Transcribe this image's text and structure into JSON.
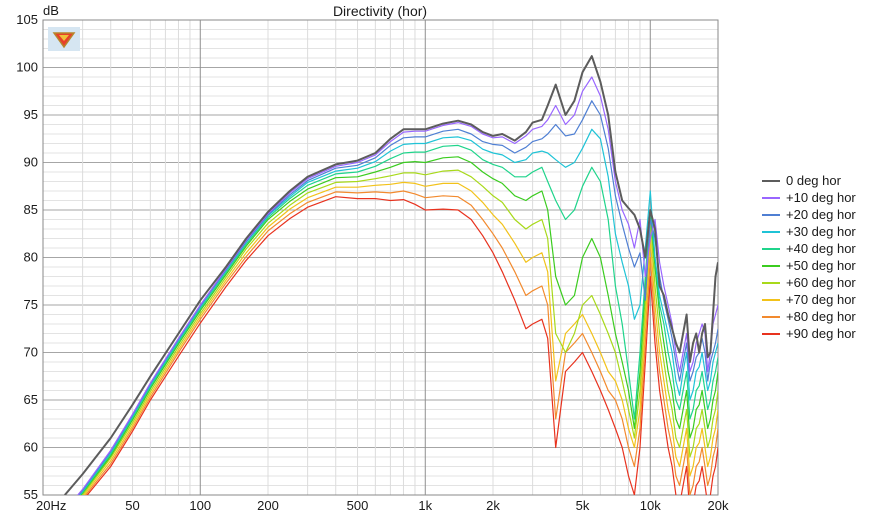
{
  "chart_data": {
    "type": "line",
    "title": "Directivity (hor)",
    "ylabel": "dB",
    "xlabel": "",
    "x_scale": "log",
    "xlim": [
      20,
      20000
    ],
    "ylim": [
      55,
      105
    ],
    "grid": true,
    "legend_position": "right",
    "y_ticks": [
      55,
      60,
      65,
      70,
      75,
      80,
      85,
      90,
      95,
      100,
      105
    ],
    "x_ticks": [
      {
        "value": 20,
        "label": "20Hz"
      },
      {
        "value": 50,
        "label": "50"
      },
      {
        "value": 100,
        "label": "100"
      },
      {
        "value": 200,
        "label": "200"
      },
      {
        "value": 500,
        "label": "500"
      },
      {
        "value": 1000,
        "label": "1k"
      },
      {
        "value": 2000,
        "label": "2k"
      },
      {
        "value": 5000,
        "label": "5k"
      },
      {
        "value": 10000,
        "label": "10k"
      },
      {
        "value": 20000,
        "label": "20k"
      }
    ],
    "x": [
      25,
      30,
      40,
      50,
      60,
      80,
      100,
      130,
      160,
      200,
      250,
      300,
      400,
      500,
      600,
      700,
      800,
      900,
      1000,
      1200,
      1400,
      1600,
      1800,
      2000,
      2200,
      2500,
      2800,
      3000,
      3300,
      3500,
      3800,
      4200,
      4600,
      5000,
      5500,
      6000,
      6500,
      7000,
      7500,
      8000,
      8500,
      9000,
      9500,
      10000,
      10500,
      11000,
      11500,
      12000,
      12500,
      13000,
      13500,
      14000,
      14500,
      15000,
      15500,
      16000,
      16500,
      17000,
      17500,
      18000,
      18500,
      19000,
      19500,
      20000
    ],
    "series": [
      {
        "name": "0 deg hor",
        "color": "#5c5c5c",
        "values": [
          55,
          57.2,
          61,
          64.5,
          67.5,
          72,
          75.5,
          79,
          82,
          84.8,
          87,
          88.5,
          89.8,
          90.2,
          91,
          92.5,
          93.5,
          93.5,
          93.5,
          94.1,
          94.4,
          94,
          93.2,
          92.8,
          93,
          92.3,
          93.2,
          94.2,
          94.5,
          96,
          98.2,
          95,
          96.5,
          99.5,
          101.2,
          98.5,
          95,
          89,
          86,
          85.2,
          84.5,
          83,
          80,
          85,
          83,
          77,
          76,
          74,
          72.5,
          71,
          70,
          72,
          74,
          69,
          71,
          72,
          70,
          72,
          73,
          69.5,
          70,
          74,
          78,
          79.5
        ]
      },
      {
        "name": "+10 deg hor",
        "color": "#9966ff",
        "values": [
          53.4,
          55.6,
          59.7,
          63.5,
          66.8,
          71.5,
          75,
          78.8,
          81.8,
          84.6,
          86.8,
          88.3,
          89.6,
          90,
          90.8,
          92.2,
          93.2,
          93.3,
          93.3,
          93.9,
          94.2,
          93.8,
          93,
          92.6,
          92.7,
          92,
          92.8,
          93.5,
          93.8,
          94.5,
          96,
          94,
          95,
          97.5,
          99,
          97,
          93.5,
          88,
          85,
          83.5,
          81,
          84,
          78,
          82,
          84,
          79.5,
          77,
          75,
          73,
          70,
          68,
          70,
          72,
          68,
          69,
          71,
          72,
          73,
          72,
          68,
          70,
          73,
          74,
          75
        ]
      },
      {
        "name": "+20 deg hor",
        "color": "#4f7fd3",
        "values": [
          53.3,
          55.5,
          59.6,
          63.4,
          66.7,
          71.4,
          74.9,
          78.7,
          81.7,
          84.5,
          86.6,
          88.1,
          89.4,
          89.7,
          90.5,
          91.8,
          92.6,
          92.7,
          92.7,
          93.3,
          93.5,
          93,
          92.2,
          91.9,
          91.8,
          91,
          91.6,
          92.2,
          92.5,
          93,
          94,
          92.8,
          93,
          94.5,
          96.5,
          95,
          91.5,
          86.5,
          83.5,
          81,
          79,
          80.5,
          75.5,
          84,
          82,
          78,
          75.5,
          73.5,
          71.5,
          69,
          67,
          69,
          71,
          67,
          68,
          69.5,
          70,
          71.5,
          70,
          67,
          69,
          70,
          71,
          72.5
        ]
      },
      {
        "name": "+30 deg hor",
        "color": "#1fc3d6",
        "values": [
          53.2,
          55.4,
          59.5,
          63.3,
          66.6,
          71.3,
          74.8,
          78.6,
          81.6,
          84.4,
          86.4,
          87.9,
          89.1,
          89.4,
          90.1,
          91.2,
          91.9,
          92,
          92,
          92.6,
          92.7,
          92.3,
          91.4,
          91,
          90.8,
          90,
          90.3,
          91,
          91.2,
          91,
          90.3,
          89.5,
          90,
          91.5,
          93.5,
          92.5,
          88.5,
          82.5,
          79.5,
          77,
          73.5,
          75,
          81,
          87,
          80,
          76,
          74,
          72,
          70,
          67,
          65.5,
          68,
          70,
          65,
          66,
          68,
          68.5,
          70,
          68,
          66,
          67,
          69,
          70,
          71
        ]
      },
      {
        "name": "+40 deg hor",
        "color": "#1fd48b",
        "values": [
          53.1,
          55.3,
          59.3,
          63.1,
          66.4,
          71.1,
          74.6,
          78.4,
          81.4,
          84.2,
          86.2,
          87.6,
          88.8,
          89,
          89.6,
          90.4,
          91,
          91.1,
          91.1,
          91.7,
          91.8,
          91.3,
          90.3,
          89.8,
          89.5,
          88.5,
          88.5,
          89,
          89.5,
          88,
          86,
          84,
          85,
          87.5,
          89.5,
          88,
          84,
          77,
          73,
          68,
          63,
          70,
          78,
          85,
          80,
          75,
          73,
          70,
          68,
          65,
          64,
          66,
          68,
          63,
          64,
          66,
          66.5,
          68,
          66,
          64,
          65,
          67,
          68,
          69.5
        ]
      },
      {
        "name": "+50 deg hor",
        "color": "#3bcc1f",
        "values": [
          53,
          55.2,
          59.1,
          62.9,
          66.2,
          70.9,
          74.4,
          78.2,
          81.2,
          84,
          85.9,
          87.2,
          88.4,
          88.5,
          89,
          89.5,
          90,
          90.1,
          90,
          90.5,
          90.6,
          90,
          89,
          88.3,
          87.8,
          86.5,
          86,
          86.5,
          87,
          85,
          78,
          75,
          76,
          80,
          82,
          80,
          76,
          72,
          69,
          66,
          62,
          68,
          77,
          85,
          79,
          74,
          71,
          68,
          66,
          63,
          62,
          64,
          66,
          61,
          62,
          64,
          64.5,
          66,
          64,
          62,
          63,
          65,
          66,
          68
        ]
      },
      {
        "name": "+60 deg hor",
        "color": "#a8d91a",
        "values": [
          52.8,
          55,
          58.9,
          62.6,
          65.9,
          70.6,
          74.1,
          77.9,
          80.9,
          83.6,
          85.5,
          86.8,
          87.9,
          88,
          88.3,
          88.6,
          88.9,
          88.9,
          88.7,
          89.1,
          89.2,
          88.5,
          87.5,
          86.5,
          85.8,
          84,
          83,
          83.5,
          84,
          82,
          72,
          70,
          72,
          75,
          76,
          74,
          72,
          70,
          67,
          64,
          61,
          66,
          75,
          84,
          77,
          72,
          69,
          66,
          64,
          61,
          60,
          62,
          64,
          59,
          60,
          62,
          62.5,
          64,
          62,
          60,
          61,
          63,
          64,
          66
        ]
      },
      {
        "name": "+70 deg hor",
        "color": "#f2c21a",
        "values": [
          52.6,
          54.8,
          58.6,
          62.3,
          65.6,
          70.3,
          73.8,
          77.6,
          80.5,
          83.2,
          85.1,
          86.3,
          87.4,
          87.4,
          87.6,
          87.7,
          87.9,
          87.8,
          87.5,
          87.8,
          87.8,
          87,
          85.8,
          84.5,
          83.5,
          81.5,
          79.5,
          80,
          80.5,
          78.5,
          67,
          72,
          73,
          74,
          72,
          70,
          68,
          67,
          65,
          62,
          60,
          64,
          73,
          82,
          75,
          70,
          67,
          64,
          62,
          59,
          58,
          60,
          62,
          57,
          58,
          60,
          60.5,
          62,
          60,
          58,
          59,
          61,
          62,
          64
        ]
      },
      {
        "name": "+80 deg hor",
        "color": "#f28a2e",
        "values": [
          52.4,
          54.6,
          58.3,
          62,
          65.3,
          70,
          73.5,
          77.3,
          80.1,
          82.8,
          84.6,
          85.8,
          86.9,
          86.8,
          86.9,
          86.8,
          87,
          86.7,
          86.3,
          86.5,
          86.4,
          85.5,
          84,
          82.5,
          81,
          78.5,
          76,
          76.5,
          77,
          75,
          63,
          70,
          71,
          72,
          70,
          68,
          66,
          65,
          63,
          60,
          58,
          62,
          71,
          80,
          73,
          68,
          65,
          62,
          60,
          57,
          56,
          58,
          60,
          55,
          56,
          58,
          58.5,
          60,
          58,
          56,
          57,
          59,
          60,
          62
        ]
      },
      {
        "name": "+90 deg hor",
        "color": "#e8321e",
        "values": [
          52.2,
          54.4,
          58,
          61.7,
          65,
          69.6,
          73.1,
          76.9,
          79.7,
          82.3,
          84.1,
          85.3,
          86.4,
          86.2,
          86.2,
          86,
          86.1,
          85.6,
          85,
          85.1,
          85,
          84,
          82.3,
          80.5,
          78.5,
          75.5,
          72.5,
          73,
          73.5,
          71.5,
          60,
          68,
          69,
          70,
          68,
          66,
          64,
          62,
          60,
          57,
          55,
          60,
          69,
          78,
          71,
          66,
          63,
          60,
          58,
          55,
          54,
          56,
          58,
          53,
          54,
          56,
          56.5,
          58,
          56,
          54,
          55,
          57,
          58,
          60
        ]
      }
    ]
  }
}
